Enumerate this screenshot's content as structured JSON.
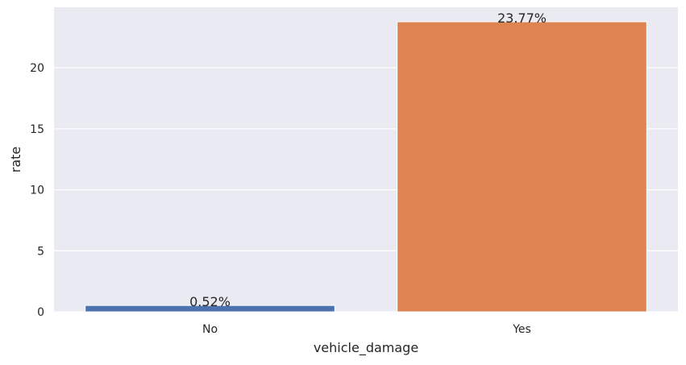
{
  "chart_data": {
    "type": "bar",
    "categories": [
      "No",
      "Yes"
    ],
    "values": [
      0.52,
      23.77
    ],
    "value_labels": [
      "0.52%",
      "23.77%"
    ],
    "title": "",
    "xlabel": "vehicle_damage",
    "ylabel": "rate",
    "ylim": [
      0,
      24.96
    ],
    "yticks": [
      0,
      5,
      10,
      15,
      20
    ],
    "ytick_labels": [
      "0",
      "5",
      "10",
      "15",
      "20"
    ],
    "grid": true,
    "colors": [
      "#4c72b0",
      "#dd8452"
    ],
    "background": "#eaeaf2",
    "grid_color": "#ffffff",
    "text_color": "#262626"
  }
}
